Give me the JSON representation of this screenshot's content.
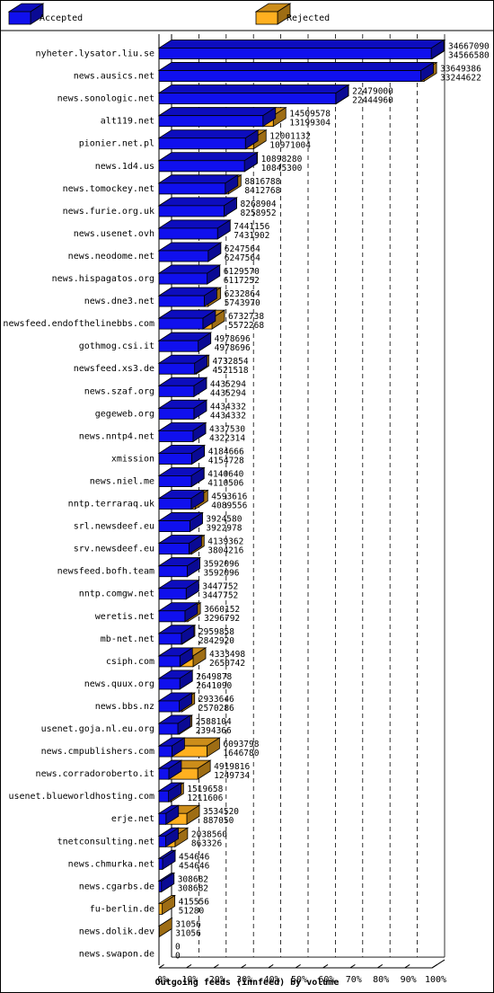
{
  "legend": {
    "accepted_label": "Accepted",
    "rejected_label": "Rejected"
  },
  "colors": {
    "accepted": "#1010ee",
    "rejected": "#ffb020",
    "grid": "#000000"
  },
  "chart_data": {
    "type": "bar",
    "orientation": "horizontal",
    "stacked": true,
    "xlabel": "Outgoing feeds (innfeed) by volume",
    "xlim": [
      0,
      100
    ],
    "x_ticks": [
      "0%",
      "10%",
      "20%",
      "30%",
      "40%",
      "50%",
      "60%",
      "70%",
      "80%",
      "90%",
      "100%"
    ],
    "max_offered": 34667090,
    "series": [
      {
        "name": "Accepted"
      },
      {
        "name": "Rejected"
      }
    ],
    "rows": [
      {
        "host": "nyheter.lysator.liu.se",
        "offered": 34667090,
        "accepted": 34566580
      },
      {
        "host": "news.ausics.net",
        "offered": 33649386,
        "accepted": 33244622
      },
      {
        "host": "news.sonologic.net",
        "offered": 22479000,
        "accepted": 22444960
      },
      {
        "host": "alt119.net",
        "offered": 14509578,
        "accepted": 13199304
      },
      {
        "host": "pionier.net.pl",
        "offered": 12001132,
        "accepted": 10971004
      },
      {
        "host": "news.1d4.us",
        "offered": 10898280,
        "accepted": 10845300
      },
      {
        "host": "news.tomockey.net",
        "offered": 8816788,
        "accepted": 8412768
      },
      {
        "host": "news.furie.org.uk",
        "offered": 8268904,
        "accepted": 8258952
      },
      {
        "host": "news.usenet.ovh",
        "offered": 7441156,
        "accepted": 7431902
      },
      {
        "host": "news.neodome.net",
        "offered": 6247564,
        "accepted": 6247564
      },
      {
        "host": "news.hispagatos.org",
        "offered": 6129570,
        "accepted": 6117252
      },
      {
        "host": "news.dne3.net",
        "offered": 6232864,
        "accepted": 5743970
      },
      {
        "host": "newsfeed.endofthelinebbs.com",
        "offered": 6732738,
        "accepted": 5572268
      },
      {
        "host": "gothmog.csi.it",
        "offered": 4978696,
        "accepted": 4978696
      },
      {
        "host": "newsfeed.xs3.de",
        "offered": 4732854,
        "accepted": 4521518
      },
      {
        "host": "news.szaf.org",
        "offered": 4435294,
        "accepted": 4435294
      },
      {
        "host": "gegeweb.org",
        "offered": 4434332,
        "accepted": 4434332
      },
      {
        "host": "news.nntp4.net",
        "offered": 4337530,
        "accepted": 4322314
      },
      {
        "host": "xmission",
        "offered": 4184666,
        "accepted": 4154728
      },
      {
        "host": "news.niel.me",
        "offered": 4140640,
        "accepted": 4110506
      },
      {
        "host": "nntp.terraraq.uk",
        "offered": 4593616,
        "accepted": 4089556
      },
      {
        "host": "srl.newsdeef.eu",
        "offered": 3924580,
        "accepted": 3922978
      },
      {
        "host": "srv.newsdeef.eu",
        "offered": 4139362,
        "accepted": 3804216
      },
      {
        "host": "newsfeed.bofh.team",
        "offered": 3592096,
        "accepted": 3592096
      },
      {
        "host": "nntp.comgw.net",
        "offered": 3447752,
        "accepted": 3447752
      },
      {
        "host": "weretis.net",
        "offered": 3660152,
        "accepted": 3296792
      },
      {
        "host": "mb-net.net",
        "offered": 2959858,
        "accepted": 2842920
      },
      {
        "host": "csiph.com",
        "offered": 4333498,
        "accepted": 2650742
      },
      {
        "host": "news.quux.org",
        "offered": 2649878,
        "accepted": 2641090
      },
      {
        "host": "news.bbs.nz",
        "offered": 2933646,
        "accepted": 2570286
      },
      {
        "host": "usenet.goja.nl.eu.org",
        "offered": 2588104,
        "accepted": 2394366
      },
      {
        "host": "news.cmpublishers.com",
        "offered": 6093798,
        "accepted": 1646780
      },
      {
        "host": "news.corradoroberto.it",
        "offered": 4919816,
        "accepted": 1249734
      },
      {
        "host": "usenet.blueworldhosting.com",
        "offered": 1519658,
        "accepted": 1211606
      },
      {
        "host": "erje.net",
        "offered": 3534520,
        "accepted": 887050
      },
      {
        "host": "tnetconsulting.net",
        "offered": 2038560,
        "accepted": 863326
      },
      {
        "host": "news.chmurka.net",
        "offered": 454646,
        "accepted": 454646
      },
      {
        "host": "news.cgarbs.de",
        "offered": 308682,
        "accepted": 308682
      },
      {
        "host": "fu-berlin.de",
        "offered": 415556,
        "accepted": 51280
      },
      {
        "host": "news.dolik.dev",
        "offered": 31056,
        "accepted": 31056
      },
      {
        "host": "news.swapon.de",
        "offered": 0,
        "accepted": 0
      }
    ]
  }
}
